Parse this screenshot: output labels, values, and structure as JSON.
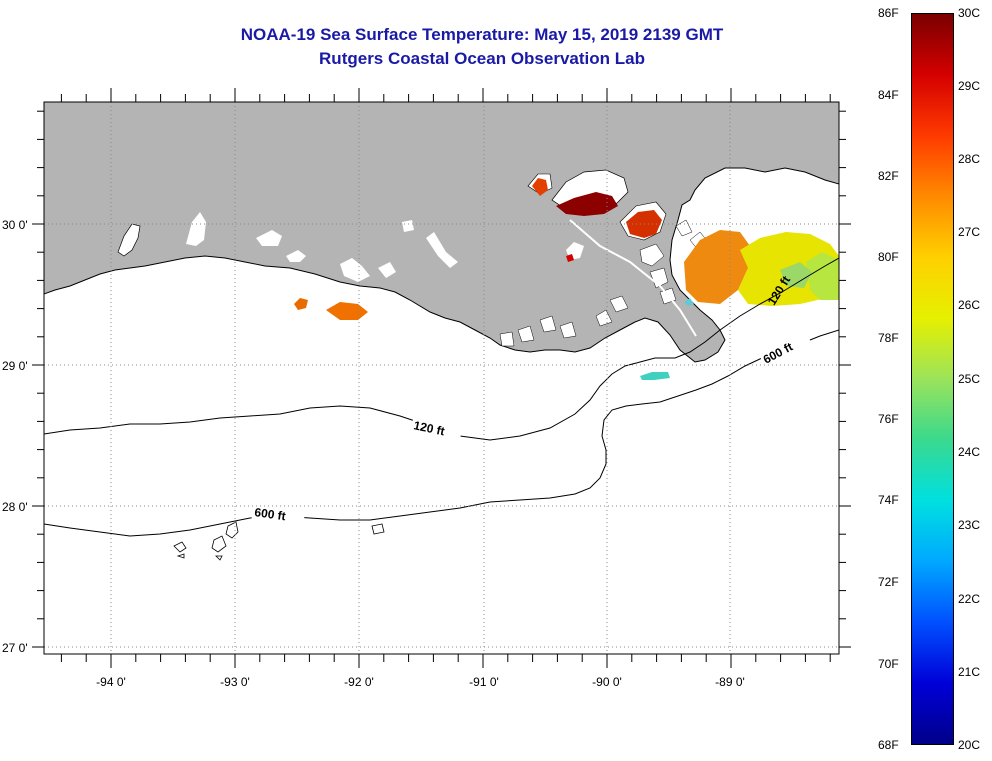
{
  "title": {
    "line1": "NOAA-19 Sea Surface Temperature:  May 15, 2019 2139 GMT",
    "line2": "Rutgers Coastal Ocean Observation Lab"
  },
  "colors": {
    "title": "#1a1aa6",
    "land": "#b4b4b4",
    "water": "#ffffff",
    "grid": "#888888"
  },
  "map": {
    "lon_labels": [
      "-94 0'",
      "-93 0'",
      "-92 0'",
      "-91 0'",
      "-90 0'",
      "-89 0'"
    ],
    "lat_labels": [
      "30 0'",
      "29 0'",
      "28 0'",
      "27 0'"
    ],
    "contours": [
      {
        "label": "120 ft",
        "count": 2
      },
      {
        "label": "600 ft",
        "count": 2
      }
    ]
  },
  "colorbar": {
    "fahrenheit": [
      "86F",
      "84F",
      "82F",
      "80F",
      "78F",
      "76F",
      "74F",
      "72F",
      "70F",
      "68F"
    ],
    "celsius": [
      "30C",
      "29C",
      "28C",
      "27C",
      "26C",
      "25C",
      "24C",
      "23C",
      "22C",
      "21C",
      "20C"
    ],
    "gradient_stops": [
      "#7a0000",
      "#d40000",
      "#ff3a00",
      "#ff8a00",
      "#ffd000",
      "#e6f000",
      "#9be35a",
      "#39d98e",
      "#00e0e0",
      "#00a8ff",
      "#0050ff",
      "#0000d8",
      "#00008a"
    ]
  }
}
